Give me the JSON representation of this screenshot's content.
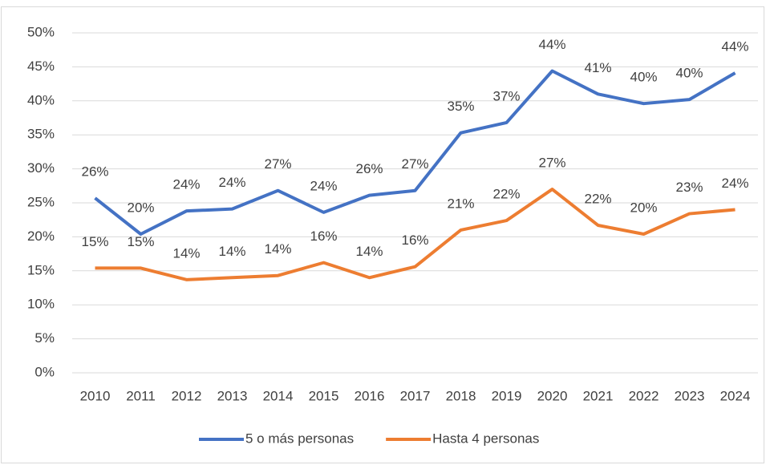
{
  "chart_data": {
    "type": "line",
    "categories": [
      "2010",
      "2011",
      "2012",
      "2013",
      "2014",
      "2015",
      "2016",
      "2017",
      "2018",
      "2019",
      "2020",
      "2021",
      "2022",
      "2023",
      "2024"
    ],
    "series": [
      {
        "name": "5 o más personas",
        "color": "#4472c4",
        "values": [
          25.7,
          20.4,
          23.8,
          24.1,
          26.8,
          23.6,
          26.1,
          26.8,
          35.3,
          36.8,
          44.4,
          41.0,
          39.6,
          40.2,
          44.1
        ],
        "value_labels": [
          "26%",
          "20%",
          "24%",
          "24%",
          "27%",
          "24%",
          "26%",
          "27%",
          "35%",
          "37%",
          "44%",
          "41%",
          "40%",
          "40%",
          "44%"
        ]
      },
      {
        "name": "Hasta 4 personas",
        "color": "#ed7d31",
        "values": [
          15.4,
          15.4,
          13.7,
          14.0,
          14.3,
          16.2,
          14.0,
          15.6,
          21.0,
          22.4,
          27.0,
          21.7,
          20.4,
          23.4,
          24.0
        ],
        "value_labels": [
          "15%",
          "15%",
          "14%",
          "14%",
          "14%",
          "16%",
          "14%",
          "16%",
          "21%",
          "22%",
          "27%",
          "22%",
          "20%",
          "23%",
          "24%"
        ]
      }
    ],
    "ylim": [
      0,
      50
    ],
    "yticks": [
      {
        "value": 0,
        "label": "0%"
      },
      {
        "value": 5,
        "label": "5%"
      },
      {
        "value": 10,
        "label": "10%"
      },
      {
        "value": 15,
        "label": "15%"
      },
      {
        "value": 20,
        "label": "20%"
      },
      {
        "value": 25,
        "label": "25%"
      },
      {
        "value": 30,
        "label": "30%"
      },
      {
        "value": 35,
        "label": "35%"
      },
      {
        "value": 40,
        "label": "40%"
      },
      {
        "value": 45,
        "label": "45%"
      },
      {
        "value": 50,
        "label": "50%"
      }
    ],
    "grid": true,
    "legend": "bottom"
  }
}
